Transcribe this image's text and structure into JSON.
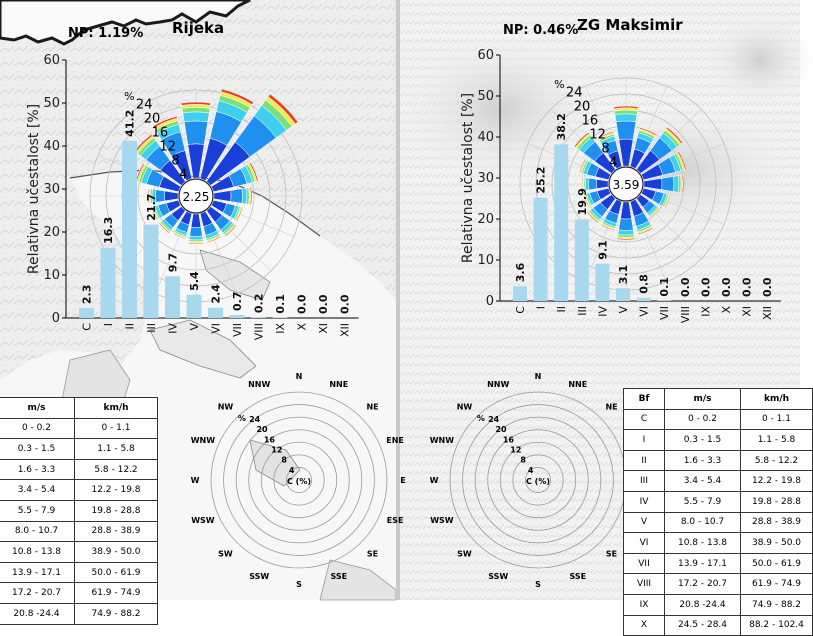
{
  "chart_data": [
    {
      "type": "bar",
      "station": "Rijeka",
      "np": "NP: 1.19%",
      "calm": "2.25",
      "ylabel": "Relativna učestalost [%]",
      "ylim": [
        0,
        60
      ],
      "yticks": [
        "0",
        "10",
        "20",
        "30",
        "40",
        "50",
        "60"
      ],
      "categories": [
        "C",
        "I",
        "II",
        "III",
        "IV",
        "V",
        "VI",
        "VII",
        "VIII",
        "IX",
        "X",
        "XI",
        "XII"
      ],
      "values": [
        2.3,
        16.3,
        41.2,
        21.7,
        9.7,
        5.4,
        2.4,
        0.7,
        0.2,
        0.1,
        0.0,
        0.0,
        0.0
      ],
      "value_labels": [
        "2.3",
        "16.3",
        "41.2",
        "21.7",
        "9.7",
        "5.4",
        "2.4",
        "0.7",
        "0.2",
        "0.1",
        "0.0",
        "0.0",
        "0.0"
      ],
      "rose_rings": [
        "4",
        "8",
        "12",
        "16",
        "20",
        "24"
      ],
      "rose_unit": "%",
      "bar_color": "#a8d8ee"
    },
    {
      "type": "bar",
      "station": "ZG Maksimir",
      "np": "NP: 0.46%",
      "calm": "3.59",
      "ylabel": "Relativna učestalost [%]",
      "ylim": [
        0,
        60
      ],
      "yticks": [
        "0",
        "10",
        "20",
        "30",
        "40",
        "50",
        "60"
      ],
      "categories": [
        "C",
        "I",
        "II",
        "III",
        "IV",
        "V",
        "VI",
        "VII",
        "VIII",
        "IX",
        "X",
        "XI",
        "XII"
      ],
      "values": [
        3.6,
        25.2,
        38.2,
        19.9,
        9.1,
        3.1,
        0.8,
        0.1,
        0.0,
        0.0,
        0.0,
        0.0,
        0.0
      ],
      "value_labels": [
        "3.6",
        "25.2",
        "38.2",
        "19.9",
        "9.1",
        "3.1",
        "0.8",
        "0.1",
        "0.0",
        "0.0",
        "0.0",
        "0.0",
        "0.0"
      ],
      "rose_rings": [
        "4",
        "8",
        "12",
        "16",
        "20",
        "24"
      ],
      "rose_unit": "%",
      "bar_color": "#a8d8ee"
    }
  ],
  "legend_rose": {
    "directions": [
      "N",
      "NNE",
      "NE",
      "ENE",
      "E",
      "ESE",
      "SE",
      "SSE",
      "S",
      "SSW",
      "SW",
      "WSW",
      "W",
      "WNW",
      "NW",
      "NNW"
    ],
    "rings": [
      "4",
      "8",
      "12",
      "16",
      "20",
      "24"
    ],
    "unit": "%",
    "center": "C (%)"
  },
  "beaufort_table": {
    "headers": [
      "Bf",
      "m/s",
      "km/h"
    ],
    "rows": [
      [
        "C",
        "0 - 0.2",
        "0 - 1.1"
      ],
      [
        "I",
        "0.3 - 1.5",
        "1.1 - 5.8"
      ],
      [
        "II",
        "1.6 - 3.3",
        "5.8 - 12.2"
      ],
      [
        "III",
        "3.4 - 5.4",
        "12.2 - 19.8"
      ],
      [
        "IV",
        "5.5 - 7.9",
        "19.8 - 28.8"
      ],
      [
        "V",
        "8.0 - 10.7",
        "28.8 - 38.9"
      ],
      [
        "VI",
        "10.8 - 13.8",
        "38.9 - 50.0"
      ],
      [
        "VII",
        "13.9 - 17.1",
        "50.0 - 61.9"
      ],
      [
        "VIII",
        "17.2 - 20.7",
        "61.9 - 74.9"
      ],
      [
        "IX",
        "20.8 -24.4",
        "74.9 - 88.2"
      ],
      [
        "X",
        "24.5 - 28.4",
        "88.2 - 102.4"
      ]
    ],
    "left_rows": [
      [
        "0 - 0.2",
        "0 - 1.1"
      ],
      [
        "0.3 - 1.5",
        "1.1 - 5.8"
      ],
      [
        "1.6 - 3.3",
        "5.8 - 12.2"
      ],
      [
        "3.4 - 5.4",
        "12.2 - 19.8"
      ],
      [
        "5.5 - 7.9",
        "19.8 - 28.8"
      ],
      [
        "8.0 - 10.7",
        "28.8 - 38.9"
      ],
      [
        "10.8 - 13.8",
        "38.9 - 50.0"
      ],
      [
        "13.9 - 17.1",
        "50.0 - 61.9"
      ],
      [
        "17.2 - 20.7",
        "61.9 - 74.9"
      ],
      [
        "20.8 -24.4",
        "74.9 - 88.2"
      ]
    ]
  },
  "colors": {
    "bar": "#a8d8ee",
    "rose_inner": "#1a3fd8",
    "rose_mid": "#1f8ff0",
    "rose_outer": "#3fd0f0",
    "rose_edge_green": "#7be07a",
    "rose_edge_yellow": "#f2ec4a",
    "rose_edge_red": "#e8402a",
    "coast": "#222222"
  }
}
